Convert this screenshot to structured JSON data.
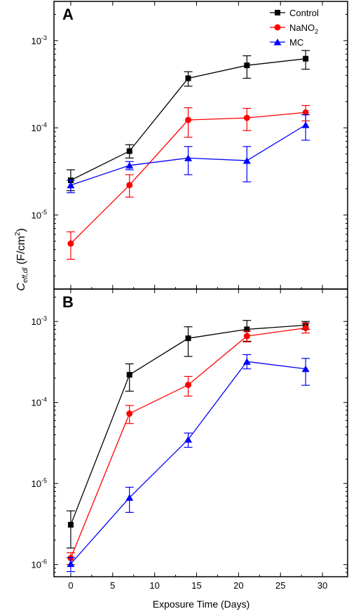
{
  "chart_data": {
    "type": "line",
    "xlabel": "Exposure Time (Days)",
    "ylabel": {
      "base": "C",
      "sub": "eff,dl",
      "unit_pre": " (F/cm",
      "unit_sup": "2",
      "unit_post": ")"
    },
    "xlim": [
      -2,
      33
    ],
    "xticks": [
      0,
      5,
      10,
      15,
      20,
      25,
      30
    ],
    "yscale": "log",
    "legend_position": "top-right",
    "legend": [
      {
        "name": "Control",
        "color": "#000000",
        "marker": "square"
      },
      {
        "name": "NaNO",
        "sub": "2",
        "color": "#ff0000",
        "marker": "circle"
      },
      {
        "name": "MC",
        "color": "#0000ff",
        "marker": "triangle"
      }
    ],
    "panels": [
      {
        "label": "A",
        "ylim_exp": [
          -5.85,
          -2.55
        ],
        "ytick_exps": [
          -5,
          -4,
          -3
        ],
        "x": [
          0,
          7,
          14,
          21,
          28
        ],
        "series": [
          {
            "name": "Control",
            "color": "#000000",
            "marker": "square",
            "values": [
              2.5e-05,
              5.4e-05,
              0.00037,
              0.00052,
              0.00062
            ],
            "err_low": [
              1.9e-05,
              4.5e-05,
              0.0003,
              0.00037,
              0.00047
            ],
            "err_high": [
              3.3e-05,
              6.4e-05,
              0.00044,
              0.00067,
              0.00077
            ]
          },
          {
            "name": "NaNO2",
            "color": "#ff0000",
            "marker": "circle",
            "values": [
              4.7e-06,
              2.2e-05,
              0.000123,
              0.00013,
              0.00015
            ],
            "err_low": [
              3.1e-06,
              1.6e-05,
              7.8e-05,
              9.3e-05,
              0.00012
            ],
            "err_high": [
              6.4e-06,
              2.9e-05,
              0.00017,
              0.000167,
              0.00018
            ]
          },
          {
            "name": "MC",
            "color": "#0000ff",
            "marker": "triangle",
            "values": [
              2.2e-05,
              3.7e-05,
              4.5e-05,
              4.2e-05,
              0.000108
            ],
            "err_low": [
              1.8e-05,
              3.3e-05,
              2.9e-05,
              2.4e-05,
              7.2e-05
            ],
            "err_high": [
              2.5e-05,
              4.1e-05,
              6.1e-05,
              6.1e-05,
              0.000141
            ]
          }
        ]
      },
      {
        "label": "B",
        "ylim_exp": [
          -6.15,
          -2.6
        ],
        "ytick_exps": [
          -6,
          -5,
          -4,
          -3
        ],
        "x": [
          0,
          7,
          14,
          21,
          28
        ],
        "series": [
          {
            "name": "Control",
            "color": "#000000",
            "marker": "square",
            "values": [
              3.1e-06,
              0.00022,
              0.00062,
              0.0008,
              0.0009
            ],
            "err_low": [
              1.6e-06,
              0.000138,
              0.00037,
              0.00057,
              0.0008
            ],
            "err_high": [
              4.6e-06,
              0.0003,
              0.00086,
              0.00103,
              0.001
            ]
          },
          {
            "name": "NaNO2",
            "color": "#ff0000",
            "marker": "circle",
            "values": [
              1.2e-06,
              7.3e-05,
              0.000165,
              0.00066,
              0.00083
            ],
            "err_low": [
              1e-06,
              5.5e-05,
              0.00012,
              0.00056,
              0.00072
            ],
            "err_high": [
              1.4e-06,
              9.2e-05,
              0.00021,
              0.00076,
              0.00095
            ]
          },
          {
            "name": "MC",
            "color": "#0000ff",
            "marker": "triangle",
            "values": [
              1.02e-06,
              6.7e-06,
              3.5e-05,
              0.00032,
              0.00026
            ],
            "err_low": [
              8.2e-07,
              4.4e-06,
              2.8e-05,
              0.00026,
              0.000163
            ],
            "err_high": [
              1.22e-06,
              9e-06,
              4.2e-05,
              0.00039,
              0.00035
            ]
          }
        ]
      }
    ]
  }
}
